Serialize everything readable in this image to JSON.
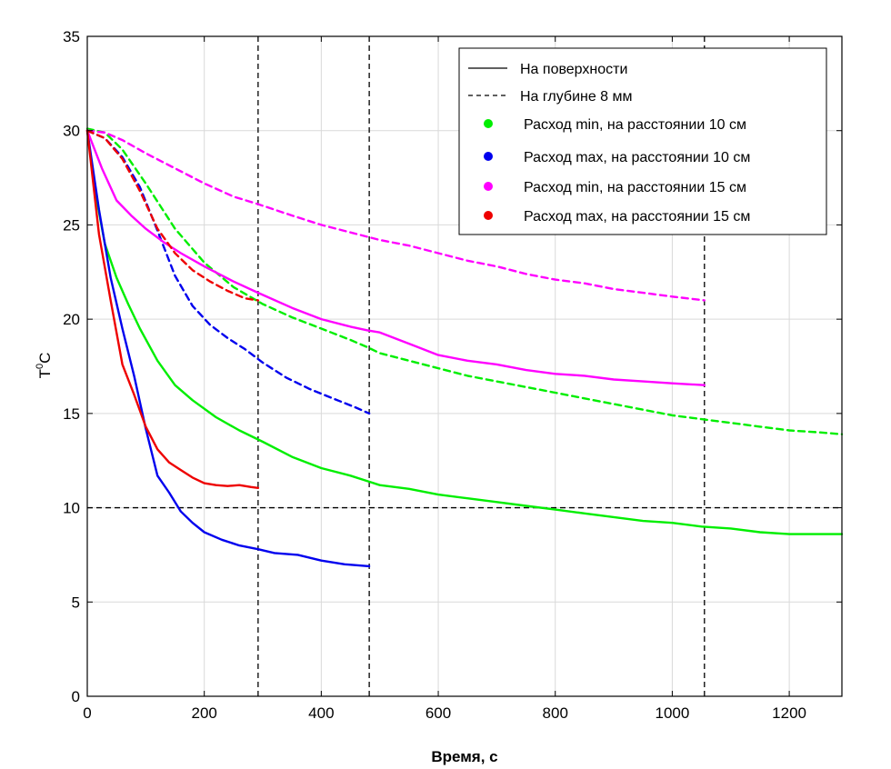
{
  "chart_data": {
    "type": "line",
    "xlabel": "Время, с",
    "ylabel": "T°C",
    "ylabel_main": "T",
    "ylabel_sup": "0",
    "ylabel_unit": "C",
    "xlim": [
      0,
      1290
    ],
    "ylim": [
      0,
      35
    ],
    "xticks": [
      0,
      200,
      400,
      600,
      800,
      1000,
      1200
    ],
    "yticks": [
      0,
      5,
      10,
      15,
      20,
      25,
      30,
      35
    ],
    "grid": true,
    "legend_position": "top-right",
    "legend": {
      "line_styles": [
        {
          "label": "На поверхности",
          "style": "solid"
        },
        {
          "label": "На глубине 8 мм",
          "style": "dashed"
        }
      ],
      "colors": [
        {
          "label": "Расход min, на расстоянии 10 см",
          "color": "#00ee00"
        },
        {
          "label": "Расход max, на расстоянии 10 см",
          "color": "#0000ee"
        },
        {
          "label": "Расход min, на расстоянии 15 см",
          "color": "#ff00ff"
        },
        {
          "label": "Расход max, на расстоянии 15 см",
          "color": "#ee0000"
        }
      ]
    },
    "reference_lines": [
      {
        "orientation": "vertical",
        "value": 292
      },
      {
        "orientation": "vertical",
        "value": 482
      },
      {
        "orientation": "vertical",
        "value": 1055
      },
      {
        "orientation": "horizontal",
        "value": 10
      }
    ],
    "series": [
      {
        "color": "#00ee00",
        "style": "solid",
        "x": [
          0,
          15,
          30,
          50,
          70,
          90,
          120,
          150,
          180,
          220,
          260,
          300,
          350,
          400,
          450,
          480,
          500,
          550,
          600,
          650,
          700,
          750,
          800,
          850,
          900,
          950,
          1000,
          1050,
          1100,
          1150,
          1200,
          1250,
          1290
        ],
        "y": [
          30,
          26.5,
          24,
          22.2,
          20.8,
          19.5,
          17.8,
          16.5,
          15.7,
          14.8,
          14.1,
          13.5,
          12.7,
          12.1,
          11.7,
          11.4,
          11.2,
          11.0,
          10.7,
          10.5,
          10.3,
          10.1,
          9.9,
          9.7,
          9.5,
          9.3,
          9.2,
          9.0,
          8.9,
          8.7,
          8.6,
          8.6,
          8.6
        ]
      },
      {
        "color": "#00ee00",
        "style": "dashed",
        "x": [
          0,
          30,
          60,
          100,
          150,
          200,
          250,
          300,
          350,
          400,
          450,
          480,
          500,
          550,
          600,
          650,
          700,
          750,
          800,
          850,
          900,
          950,
          1000,
          1050,
          1100,
          1150,
          1200,
          1250,
          1290
        ],
        "y": [
          30.1,
          29.9,
          29.0,
          27.2,
          24.8,
          23.0,
          21.7,
          20.8,
          20.1,
          19.5,
          18.9,
          18.5,
          18.2,
          17.8,
          17.4,
          17.0,
          16.7,
          16.4,
          16.1,
          15.8,
          15.5,
          15.2,
          14.9,
          14.7,
          14.5,
          14.3,
          14.1,
          14.0,
          13.9
        ]
      },
      {
        "color": "#0000ee",
        "style": "solid",
        "x": [
          0,
          20,
          40,
          60,
          80,
          100,
          120,
          140,
          160,
          180,
          200,
          230,
          260,
          292,
          320,
          360,
          400,
          440,
          482
        ],
        "y": [
          30,
          25.8,
          22.2,
          19.5,
          17.0,
          14.2,
          11.7,
          10.8,
          9.8,
          9.2,
          8.7,
          8.3,
          8.0,
          7.8,
          7.6,
          7.5,
          7.2,
          7.0,
          6.9
        ]
      },
      {
        "color": "#0000ee",
        "style": "dashed",
        "x": [
          0,
          30,
          60,
          90,
          120,
          150,
          180,
          210,
          240,
          270,
          300,
          340,
          380,
          420,
          460,
          482
        ],
        "y": [
          30,
          29.6,
          28.6,
          27.0,
          24.7,
          22.3,
          20.7,
          19.7,
          19.0,
          18.4,
          17.7,
          16.9,
          16.3,
          15.8,
          15.3,
          15.0
        ]
      },
      {
        "color": "#ff00ff",
        "style": "solid",
        "x": [
          0,
          25,
          50,
          75,
          100,
          130,
          160,
          200,
          250,
          292,
          350,
          400,
          450,
          480,
          500,
          550,
          600,
          650,
          700,
          750,
          800,
          850,
          900,
          950,
          1000,
          1055
        ],
        "y": [
          30,
          28.0,
          26.3,
          25.5,
          24.8,
          24.1,
          23.5,
          22.8,
          22.0,
          21.4,
          20.6,
          20.0,
          19.6,
          19.4,
          19.3,
          18.7,
          18.1,
          17.8,
          17.6,
          17.3,
          17.1,
          17.0,
          16.8,
          16.7,
          16.6,
          16.5
        ]
      },
      {
        "color": "#ff00ff",
        "style": "dashed",
        "x": [
          0,
          30,
          60,
          100,
          150,
          200,
          250,
          292,
          350,
          400,
          450,
          500,
          550,
          600,
          650,
          700,
          750,
          800,
          850,
          900,
          950,
          1000,
          1055
        ],
        "y": [
          30.0,
          29.9,
          29.5,
          28.8,
          28.0,
          27.2,
          26.5,
          26.1,
          25.5,
          25.0,
          24.6,
          24.2,
          23.9,
          23.5,
          23.1,
          22.8,
          22.4,
          22.1,
          21.9,
          21.6,
          21.4,
          21.2,
          21.0
        ]
      },
      {
        "color": "#ee0000",
        "style": "solid",
        "x": [
          0,
          20,
          40,
          60,
          80,
          100,
          120,
          140,
          160,
          180,
          200,
          220,
          240,
          260,
          280,
          292
        ],
        "y": [
          30,
          24.5,
          21.0,
          17.6,
          16.0,
          14.3,
          13.1,
          12.4,
          12.0,
          11.6,
          11.3,
          11.2,
          11.15,
          11.2,
          11.1,
          11.05
        ]
      },
      {
        "color": "#ee0000",
        "style": "dashed",
        "x": [
          0,
          30,
          60,
          90,
          120,
          150,
          180,
          210,
          240,
          270,
          292
        ],
        "y": [
          30,
          29.6,
          28.5,
          26.8,
          24.8,
          23.5,
          22.6,
          22.0,
          21.5,
          21.1,
          21.0
        ]
      }
    ]
  }
}
